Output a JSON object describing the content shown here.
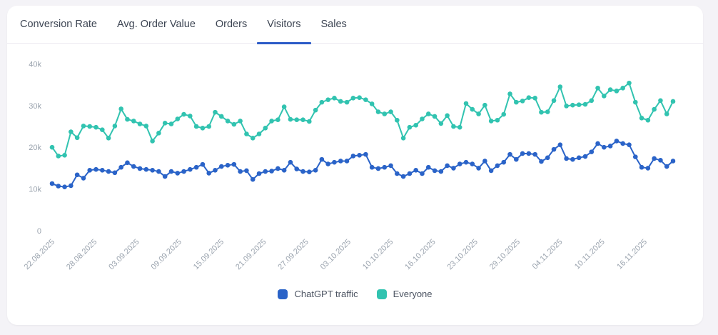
{
  "tabs": {
    "items": [
      {
        "label": "Conversion Rate",
        "active": false
      },
      {
        "label": "Avg. Order Value",
        "active": false
      },
      {
        "label": "Orders",
        "active": false
      },
      {
        "label": "Visitors",
        "active": true
      },
      {
        "label": "Sales",
        "active": false
      }
    ],
    "active_underline_color": "#2b5bc7"
  },
  "chart_data": {
    "type": "line",
    "title": "",
    "xlabel": "",
    "ylabel": "",
    "ylim": [
      0,
      40000
    ],
    "values_unit": "thousands",
    "grid": false,
    "markers": true,
    "legend_position": "bottom",
    "axis_label_color": "#9aa3ae",
    "y_tick_labels": [
      "0",
      "10k",
      "20k",
      "30k",
      "40k"
    ],
    "y_tick_values": [
      0,
      10,
      20,
      30,
      40
    ],
    "x_tick_labels": [
      "22.08.2025",
      "28.08.2025",
      "03.09.2025",
      "09.09.2025",
      "15.09.2025",
      "21.09.2025",
      "27.09.2025",
      "03.10.2025",
      "10.10.2025",
      "16.10.2025",
      "23.10.2025",
      "29.10.2025",
      "04.11.2025",
      "10.11.2025",
      "16.11.2025"
    ],
    "series": [
      {
        "name": "ChatGPT traffic",
        "color": "#2a63c8",
        "values": [
          11.3,
          10.7,
          10.5,
          10.8,
          13.4,
          12.6,
          14.5,
          14.7,
          14.5,
          14.2,
          13.9,
          15.2,
          16.3,
          15.4,
          14.9,
          14.7,
          14.5,
          14.2,
          13.0,
          14.2,
          13.8,
          14.2,
          14.7,
          15.2,
          15.9,
          13.8,
          14.5,
          15.4,
          15.7,
          15.9,
          14.2,
          14.4,
          12.3,
          13.7,
          14.2,
          14.3,
          14.9,
          14.5,
          16.4,
          14.8,
          14.2,
          14.1,
          14.5,
          17.1,
          16.0,
          16.4,
          16.7,
          16.7,
          17.9,
          18.1,
          18.3,
          15.2,
          14.9,
          15.2,
          15.6,
          13.7,
          13.0,
          13.7,
          14.5,
          13.7,
          15.2,
          14.4,
          14.2,
          15.6,
          15.0,
          16.0,
          16.4,
          16.0,
          15.0,
          16.7,
          14.4,
          15.6,
          16.4,
          18.3,
          17.1,
          18.5,
          18.5,
          18.3,
          16.6,
          17.5,
          19.5,
          20.6,
          17.3,
          17.1,
          17.5,
          17.8,
          18.9,
          20.9,
          20.0,
          20.3,
          21.5,
          20.9,
          20.6,
          17.7,
          15.2,
          15.0,
          17.3,
          16.9,
          15.4,
          16.7
        ]
      },
      {
        "name": "Everyone",
        "color": "#31c3b0",
        "values": [
          20.0,
          17.9,
          18.1,
          23.7,
          22.3,
          25.1,
          25.0,
          24.8,
          24.2,
          22.2,
          25.1,
          29.2,
          26.7,
          26.3,
          25.6,
          25.1,
          21.5,
          23.4,
          25.8,
          25.6,
          26.8,
          27.9,
          27.5,
          25.0,
          24.6,
          25.0,
          28.4,
          27.4,
          26.3,
          25.5,
          26.3,
          23.2,
          22.2,
          23.2,
          24.6,
          26.3,
          26.6,
          29.7,
          26.7,
          26.6,
          26.6,
          26.2,
          28.9,
          30.8,
          31.4,
          31.8,
          31.0,
          30.8,
          31.8,
          31.9,
          31.4,
          30.4,
          28.5,
          28.0,
          28.5,
          26.5,
          22.2,
          24.8,
          25.3,
          26.8,
          28.0,
          27.4,
          25.7,
          27.6,
          25.0,
          24.8,
          30.5,
          29.1,
          28.0,
          30.1,
          26.3,
          26.5,
          27.9,
          32.8,
          30.8,
          31.1,
          31.9,
          31.8,
          28.4,
          28.5,
          31.2,
          34.5,
          29.9,
          30.1,
          30.2,
          30.3,
          31.2,
          34.2,
          32.3,
          33.8,
          33.5,
          34.2,
          35.4,
          30.8,
          27.0,
          26.5,
          29.1,
          31.2,
          28.0,
          31.0
        ]
      }
    ]
  }
}
